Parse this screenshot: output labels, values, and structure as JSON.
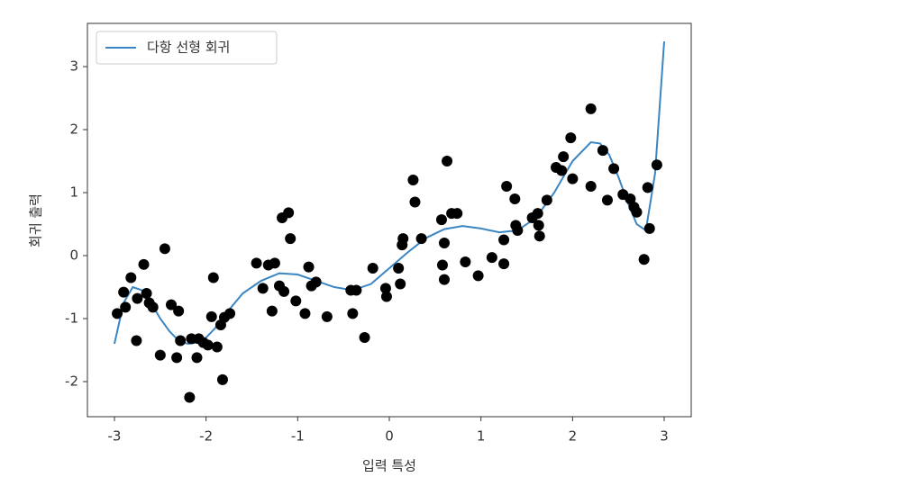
{
  "chart_data": {
    "type": "line",
    "xlabel": "입력 특성",
    "ylabel": "회귀 출력",
    "xlim": [
      -3.295,
      3.295
    ],
    "ylim": [
      -2.557,
      3.686
    ],
    "xticks": [
      -3,
      -2,
      -1,
      0,
      1,
      2,
      3
    ],
    "yticks": [
      -2,
      -1,
      0,
      1,
      2,
      3
    ],
    "legend": "upper left",
    "series": [
      {
        "name": "다항 선형 회귀",
        "color": "#3a86c4",
        "x": [
          -3,
          -2.9,
          -2.8,
          -2.7,
          -2.6,
          -2.5,
          -2.4,
          -2.3,
          -2.2,
          -2.1,
          -2.0,
          -1.9,
          -1.8,
          -1.6,
          -1.4,
          -1.2,
          -1.0,
          -0.8,
          -0.6,
          -0.4,
          -0.2,
          0,
          0.2,
          0.4,
          0.6,
          0.8,
          1.0,
          1.2,
          1.4,
          1.6,
          1.8,
          2.0,
          2.2,
          2.3,
          2.4,
          2.5,
          2.6,
          2.7,
          2.8,
          2.9,
          3.0
        ],
        "values": [
          -1.4,
          -0.75,
          -0.5,
          -0.55,
          -0.75,
          -1.0,
          -1.2,
          -1.35,
          -1.4,
          -1.38,
          -1.3,
          -1.15,
          -0.95,
          -0.6,
          -0.4,
          -0.28,
          -0.3,
          -0.4,
          -0.5,
          -0.55,
          -0.45,
          -0.2,
          0.05,
          0.28,
          0.42,
          0.47,
          0.43,
          0.37,
          0.4,
          0.6,
          1.0,
          1.5,
          1.8,
          1.78,
          1.6,
          1.25,
          0.85,
          0.5,
          0.4,
          1.3,
          3.4
        ]
      }
    ],
    "scatter": {
      "color": "#000000",
      "x": [
        -2.97,
        -2.9,
        -2.88,
        -2.82,
        -2.76,
        -2.75,
        -2.68,
        -2.65,
        -2.62,
        -2.58,
        -2.5,
        -2.45,
        -2.38,
        -2.32,
        -2.3,
        -2.28,
        -2.18,
        -2.16,
        -2.1,
        -2.08,
        -2.03,
        -1.98,
        -1.94,
        -1.92,
        -1.88,
        -1.84,
        -1.82,
        -1.8,
        -1.74,
        -1.45,
        -1.38,
        -1.32,
        -1.28,
        -1.25,
        -1.2,
        -1.17,
        -1.15,
        -1.1,
        -1.08,
        -1.02,
        -0.92,
        -0.88,
        -0.85,
        -0.8,
        -0.68,
        -0.42,
        -0.4,
        -0.36,
        -0.27,
        -0.18,
        -0.04,
        -0.03,
        0.1,
        0.12,
        0.14,
        0.15,
        0.26,
        0.28,
        0.35,
        0.57,
        0.58,
        0.6,
        0.6,
        0.63,
        0.68,
        0.74,
        0.83,
        0.97,
        1.12,
        1.25,
        1.25,
        1.28,
        1.37,
        1.38,
        1.4,
        1.56,
        1.62,
        1.63,
        1.64,
        1.72,
        1.82,
        1.88,
        1.9,
        1.98,
        2.0,
        2.2,
        2.2,
        2.33,
        2.38,
        2.45,
        2.55,
        2.63,
        2.67,
        2.7,
        2.78,
        2.82,
        2.84,
        2.92
      ],
      "values": [
        -0.92,
        -0.58,
        -0.82,
        -0.35,
        -1.35,
        -0.68,
        -0.14,
        -0.6,
        -0.75,
        -0.82,
        -1.58,
        0.11,
        -0.78,
        -1.62,
        -0.88,
        -1.35,
        -2.25,
        -1.32,
        -1.62,
        -1.32,
        -1.38,
        -1.42,
        -0.97,
        -0.35,
        -1.45,
        -1.1,
        -1.97,
        -0.98,
        -0.92,
        -0.12,
        -0.52,
        -0.15,
        -0.88,
        -0.12,
        -0.48,
        0.6,
        -0.57,
        0.68,
        0.27,
        -0.72,
        -0.92,
        -0.18,
        -0.48,
        -0.42,
        -0.97,
        -0.55,
        -0.92,
        -0.55,
        -1.3,
        -0.2,
        -0.52,
        -0.65,
        -0.2,
        -0.45,
        0.17,
        0.27,
        1.2,
        0.85,
        0.27,
        0.57,
        -0.15,
        -0.38,
        0.2,
        1.5,
        0.67,
        0.67,
        -0.1,
        -0.32,
        -0.03,
        -0.13,
        0.25,
        1.1,
        0.9,
        0.48,
        0.4,
        0.6,
        0.67,
        0.48,
        0.31,
        0.88,
        1.4,
        1.35,
        1.57,
        1.87,
        1.22,
        2.33,
        1.1,
        1.67,
        0.88,
        1.38,
        0.97,
        0.9,
        0.77,
        0.69,
        -0.06,
        1.08,
        0.43,
        1.44
      ]
    }
  }
}
